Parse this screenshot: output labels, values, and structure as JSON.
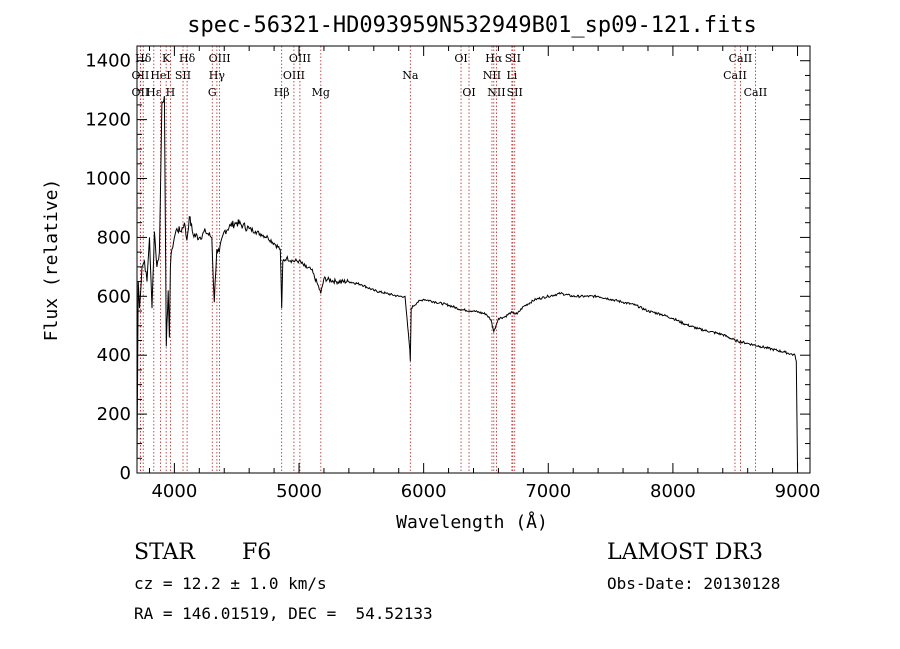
{
  "chart_data": {
    "type": "line",
    "title": "spec-56321-HD093959N532949B01_sp09-121.fits",
    "xlabel": "Wavelength (Å)",
    "ylabel": "Flux (relative)",
    "xlim": [
      3700,
      9100
    ],
    "ylim": [
      0,
      1450
    ],
    "x_ticks": [
      4000,
      5000,
      6000,
      7000,
      8000,
      9000
    ],
    "y_ticks": [
      0,
      200,
      400,
      600,
      800,
      1000,
      1200,
      1400
    ],
    "series": [
      {
        "name": "flux",
        "x": [
          3700,
          3710,
          3720,
          3740,
          3760,
          3780,
          3800,
          3820,
          3840,
          3860,
          3880,
          3900,
          3920,
          3930,
          3935,
          3950,
          3960,
          3968,
          3980,
          4000,
          4020,
          4050,
          4080,
          4100,
          4120,
          4150,
          4200,
          4250,
          4300,
          4320,
          4340,
          4360,
          4400,
          4450,
          4500,
          4550,
          4600,
          4650,
          4700,
          4750,
          4800,
          4850,
          4861,
          4870,
          4900,
          4950,
          5000,
          5050,
          5100,
          5150,
          5175,
          5200,
          5300,
          5400,
          5500,
          5600,
          5700,
          5800,
          5850,
          5889,
          5893,
          5900,
          5950,
          6000,
          6100,
          6200,
          6300,
          6400,
          6500,
          6540,
          6563,
          6580,
          6600,
          6650,
          6700,
          6750,
          6800,
          6900,
          7000,
          7100,
          7200,
          7300,
          7400,
          7500,
          7600,
          7700,
          7800,
          7900,
          8000,
          8100,
          8200,
          8300,
          8400,
          8500,
          8600,
          8700,
          8800,
          8900,
          8980,
          8990,
          9000
        ],
        "y": [
          30,
          650,
          560,
          700,
          720,
          650,
          800,
          560,
          820,
          700,
          750,
          1260,
          1280,
          700,
          430,
          620,
          460,
          700,
          760,
          800,
          830,
          820,
          850,
          790,
          870,
          810,
          800,
          820,
          800,
          580,
          760,
          750,
          820,
          840,
          850,
          840,
          830,
          820,
          810,
          800,
          780,
          760,
          560,
          720,
          730,
          720,
          720,
          700,
          690,
          640,
          610,
          660,
          650,
          650,
          640,
          620,
          610,
          600,
          600,
          420,
          380,
          560,
          580,
          590,
          580,
          570,
          555,
          550,
          540,
          520,
          480,
          500,
          525,
          530,
          545,
          540,
          565,
          590,
          600,
          610,
          600,
          600,
          600,
          590,
          580,
          570,
          550,
          540,
          525,
          505,
          490,
          480,
          470,
          450,
          440,
          430,
          420,
          410,
          400,
          380,
          20
        ]
      }
    ],
    "line_markers": [
      {
        "label": "Hδ",
        "x": 3750,
        "row": 1
      },
      {
        "label": "K",
        "x": 3934,
        "row": 1
      },
      {
        "label": "Hδ",
        "x": 4102,
        "row": 1
      },
      {
        "label": "OIII",
        "x": 4363,
        "row": 1
      },
      {
        "label": "OIII",
        "x": 5007,
        "row": 1
      },
      {
        "label": "OI",
        "x": 6300,
        "row": 1
      },
      {
        "label": "Hα",
        "x": 6563,
        "row": 1
      },
      {
        "label": "SII",
        "x": 6716,
        "row": 1
      },
      {
        "label": "CaII",
        "x": 8542,
        "row": 1
      },
      {
        "label": "OII",
        "x": 3727,
        "row": 2
      },
      {
        "label": "HeI",
        "x": 3889,
        "row": 2
      },
      {
        "label": "SII",
        "x": 4069,
        "row": 2
      },
      {
        "label": "Hγ",
        "x": 4341,
        "row": 2
      },
      {
        "label": "OIII",
        "x": 4959,
        "row": 2
      },
      {
        "label": "Na",
        "x": 5893,
        "row": 2
      },
      {
        "label": "NII",
        "x": 6548,
        "row": 2
      },
      {
        "label": "Li",
        "x": 6708,
        "row": 2
      },
      {
        "label": "CaII",
        "x": 8498,
        "row": 2
      },
      {
        "label": "OII",
        "x": 3727,
        "row": 3
      },
      {
        "label": "Hε",
        "x": 3835,
        "row": 3
      },
      {
        "label": "H",
        "x": 3968,
        "row": 3
      },
      {
        "label": "G",
        "x": 4304,
        "row": 3
      },
      {
        "label": "Hβ",
        "x": 4861,
        "row": 3
      },
      {
        "label": "Mg",
        "x": 5175,
        "row": 3
      },
      {
        "label": "OI",
        "x": 6364,
        "row": 3
      },
      {
        "label": "NII",
        "x": 6584,
        "row": 3
      },
      {
        "label": "SII",
        "x": 6731,
        "row": 3
      },
      {
        "label": "CaII",
        "x": 8662,
        "row": 3
      }
    ]
  },
  "info": {
    "object_class": "STAR",
    "subclass": "F6",
    "survey": "LAMOST DR3",
    "cz": "cz = 12.2 ± 1.0 km/s",
    "obs_date": "Obs-Date: 20130128",
    "coords": "RA = 146.01519, DEC =  54.52133"
  }
}
